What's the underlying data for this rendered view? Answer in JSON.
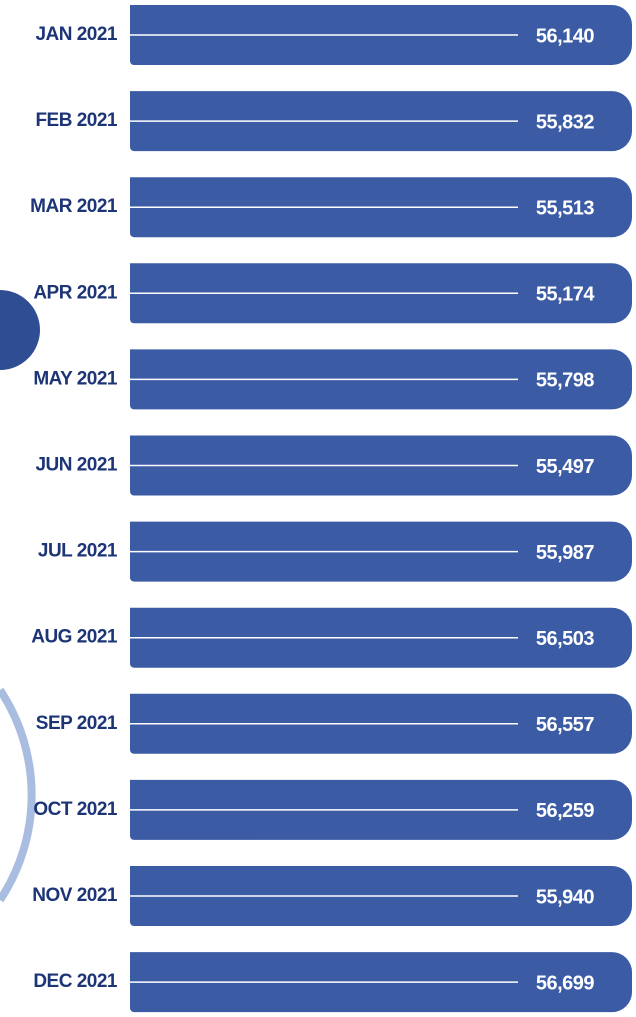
{
  "rows": [
    {
      "month": "JAN 2021",
      "value": "56,140"
    },
    {
      "month": "FEB 2021",
      "value": "55,832"
    },
    {
      "month": "MAR 2021",
      "value": "55,513"
    },
    {
      "month": "APR 2021",
      "value": "55,174"
    },
    {
      "month": "MAY 2021",
      "value": "55,798"
    },
    {
      "month": "JUN 2021",
      "value": "55,497"
    },
    {
      "month": "JUL 2021",
      "value": "55,987"
    },
    {
      "month": "AUG 2021",
      "value": "56,503"
    },
    {
      "month": "SEP 2021",
      "value": "56,557"
    },
    {
      "month": "OCT 2021",
      "value": "56,259"
    },
    {
      "month": "NOV 2021",
      "value": "55,940"
    },
    {
      "month": "DEC 2021",
      "value": "56,699"
    }
  ]
}
